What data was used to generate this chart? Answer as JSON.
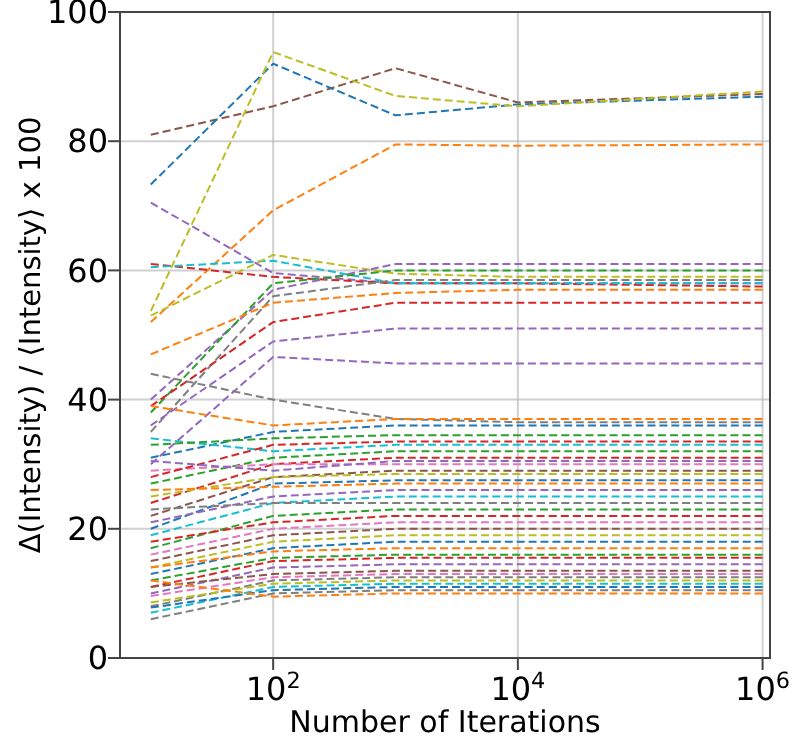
{
  "chart_data": {
    "type": "line",
    "xlabel": "Number of Iterations",
    "ylabel": "Δ(Intensity) / ⟨Intensity⟩ x 100",
    "log": "x",
    "grid": true,
    "line_style": "dashed",
    "marker": "none",
    "xlim": [
      5.6,
      1150000
    ],
    "ylim": [
      0,
      100
    ],
    "xticks": [
      {
        "value": 100,
        "label": "10$^{2}$"
      },
      {
        "value": 10000,
        "label": "10$^{4}$"
      },
      {
        "value": 1000000,
        "label": "10$^{6}$"
      }
    ],
    "yticks": [
      0,
      20,
      40,
      60,
      80,
      100
    ],
    "x": [
      10,
      100,
      1000,
      10000,
      1000000
    ],
    "series": [
      {
        "color": "#8c564b",
        "values": [
          81,
          85.4,
          91.3,
          86,
          87.3
        ]
      },
      {
        "color": "#1f77b4",
        "values": [
          73.3,
          92,
          84,
          85.7,
          86.9
        ]
      },
      {
        "color": "#bcbd22",
        "values": [
          53.7,
          93.8,
          87,
          85.4,
          87.7
        ]
      },
      {
        "color": "#ff7f0e",
        "values": [
          52,
          69.3,
          79.5,
          79.3,
          79.5
        ]
      },
      {
        "color": "#9467bd",
        "values": [
          70.5,
          59.6,
          58,
          58,
          58
        ]
      },
      {
        "color": "#d62728",
        "values": [
          61,
          59,
          58,
          58,
          57.5
        ]
      },
      {
        "color": "#17becf",
        "values": [
          60.5,
          61.5,
          58,
          58,
          58
        ]
      },
      {
        "color": "#bcbd22",
        "values": [
          53,
          62.4,
          59.5,
          59,
          59
        ]
      },
      {
        "color": "#9467bd",
        "values": [
          40,
          57,
          61,
          61,
          61
        ]
      },
      {
        "color": "#2ca02c",
        "values": [
          38,
          58,
          60,
          60,
          60
        ]
      },
      {
        "color": "#7f7f7f",
        "values": [
          35,
          56,
          58.5,
          58.5,
          58.5
        ]
      },
      {
        "color": "#ff7f0e",
        "values": [
          47,
          55,
          56.5,
          57,
          57
        ]
      },
      {
        "color": "#d62728",
        "values": [
          39,
          52,
          55,
          55,
          55
        ]
      },
      {
        "color": "#9467bd",
        "values": [
          36,
          49,
          51,
          51,
          51
        ]
      },
      {
        "color": "#9467bd",
        "values": [
          30,
          46.6,
          45.6,
          45.6,
          45.6
        ]
      },
      {
        "color": "#7f7f7f",
        "values": [
          44,
          40,
          37,
          36.5,
          36.5
        ]
      },
      {
        "color": "#ff7f0e",
        "values": [
          39,
          36,
          37,
          37,
          37
        ]
      },
      {
        "color": "#1f77b4",
        "values": [
          31,
          35,
          36,
          36,
          36
        ]
      },
      {
        "color": "#17becf",
        "values": [
          34,
          32,
          33,
          33,
          33
        ]
      },
      {
        "color": "#2ca02c",
        "values": [
          27,
          31,
          32,
          32,
          32
        ]
      },
      {
        "color": "#d62728",
        "values": [
          24,
          30,
          31,
          31,
          31
        ]
      },
      {
        "color": "#e377c2",
        "values": [
          29,
          30,
          30,
          30,
          30
        ]
      },
      {
        "color": "#8c564b",
        "values": [
          22,
          28,
          29,
          29,
          29
        ]
      },
      {
        "color": "#bcbd22",
        "values": [
          25,
          28,
          28.5,
          28.5,
          28.5
        ]
      },
      {
        "color": "#1f77b4",
        "values": [
          20,
          27,
          27.5,
          27.5,
          27.5
        ]
      },
      {
        "color": "#ff7f0e",
        "values": [
          26,
          26.5,
          27,
          27,
          27
        ]
      },
      {
        "color": "#9467bd",
        "values": [
          21,
          25,
          26,
          26,
          26
        ]
      },
      {
        "color": "#17becf",
        "values": [
          19,
          24,
          25,
          25,
          25
        ]
      },
      {
        "color": "#7f7f7f",
        "values": [
          23,
          24,
          24,
          24,
          24
        ]
      },
      {
        "color": "#2ca02c",
        "values": [
          17,
          22,
          23,
          23,
          23
        ]
      },
      {
        "color": "#d62728",
        "values": [
          18,
          21,
          22,
          22,
          22
        ]
      },
      {
        "color": "#e377c2",
        "values": [
          16,
          20,
          21,
          21,
          21
        ]
      },
      {
        "color": "#8c564b",
        "values": [
          15,
          19,
          20,
          20,
          20
        ]
      },
      {
        "color": "#bcbd22",
        "values": [
          14,
          18,
          19,
          19,
          19
        ]
      },
      {
        "color": "#1f77b4",
        "values": [
          13,
          17,
          18,
          18,
          18
        ]
      },
      {
        "color": "#ff7f0e",
        "values": [
          14,
          16.5,
          17,
          17,
          17
        ]
      },
      {
        "color": "#2ca02c",
        "values": [
          12,
          15.5,
          16,
          16,
          16
        ]
      },
      {
        "color": "#d62728",
        "values": [
          11,
          15,
          15.5,
          15.5,
          15.5
        ]
      },
      {
        "color": "#9467bd",
        "values": [
          10,
          14,
          14.5,
          14.5,
          14.5
        ]
      },
      {
        "color": "#8c564b",
        "values": [
          11,
          13,
          13.5,
          13.5,
          13.5
        ]
      },
      {
        "color": "#e377c2",
        "values": [
          9.6,
          12.5,
          13,
          13,
          13
        ]
      },
      {
        "color": "#7f7f7f",
        "values": [
          8,
          12,
          12.5,
          12.5,
          12.5
        ]
      },
      {
        "color": "#bcbd22",
        "values": [
          8.6,
          11.5,
          12,
          12,
          12
        ]
      },
      {
        "color": "#17becf",
        "values": [
          7,
          11,
          11.5,
          11.5,
          11.5
        ]
      },
      {
        "color": "#1f77b4",
        "values": [
          7.8,
          10.5,
          11,
          11,
          11
        ]
      },
      {
        "color": "#7f7f7f",
        "values": [
          6,
          10,
          10.5,
          10.5,
          10.5
        ]
      },
      {
        "color": "#ff7f0e",
        "values": [
          12,
          9.5,
          10,
          10,
          10
        ]
      },
      {
        "color": "#2ca02c",
        "values": [
          33,
          34,
          34.5,
          34.5,
          34.5
        ]
      },
      {
        "color": "#d62728",
        "values": [
          28,
          33,
          33.5,
          33.5,
          33.5
        ]
      },
      {
        "color": "#9467bd",
        "values": [
          30.5,
          29,
          30.5,
          30.5,
          30.5
        ]
      }
    ]
  }
}
